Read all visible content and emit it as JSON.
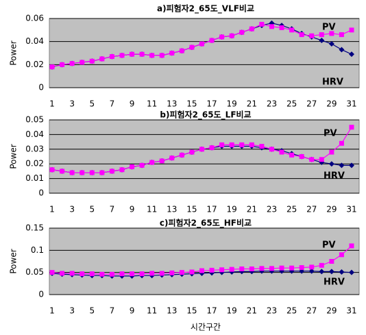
{
  "chart_data": [
    {
      "type": "line",
      "title": "a)피험자2_65도_VLF비교",
      "ylabel": "Power",
      "categories": [
        "1",
        null,
        "3",
        null,
        "5",
        null,
        "7",
        null,
        "9",
        null,
        "11",
        null,
        "13",
        null,
        "15",
        null,
        "17",
        null,
        "19",
        null,
        "21",
        null,
        "23",
        null,
        "25",
        null,
        "27",
        null,
        "29",
        null,
        "31"
      ],
      "ylim": [
        0,
        0.06
      ],
      "yticks": [
        0,
        0.02,
        0.04,
        0.06
      ],
      "grid": true,
      "background": "#c0c0c0",
      "series": [
        {
          "name": "PV",
          "color": "#ff00ff",
          "marker": "square",
          "values": [
            0.018,
            0.02,
            0.021,
            0.022,
            0.023,
            0.025,
            0.027,
            0.028,
            0.029,
            0.029,
            0.028,
            0.028,
            0.03,
            0.032,
            0.035,
            0.038,
            0.041,
            0.044,
            0.045,
            0.048,
            0.051,
            0.055,
            0.053,
            0.052,
            0.05,
            0.046,
            0.045,
            0.046,
            0.047,
            0.046,
            0.05
          ]
        },
        {
          "name": "HRV",
          "color": "#000080",
          "marker": "diamond",
          "values": [
            0.018,
            0.02,
            0.021,
            0.022,
            0.023,
            0.025,
            0.027,
            0.028,
            0.029,
            0.029,
            0.028,
            0.028,
            0.03,
            0.032,
            0.035,
            0.038,
            0.041,
            0.044,
            0.045,
            0.048,
            0.051,
            0.054,
            0.056,
            0.054,
            0.051,
            0.047,
            0.044,
            0.041,
            0.038,
            0.033,
            0.029
          ]
        }
      ]
    },
    {
      "type": "line",
      "title": "b)피험자2_65도_LF비교",
      "ylabel": "Power",
      "categories": [
        "1",
        null,
        "3",
        null,
        "5",
        null,
        "7",
        null,
        "9",
        null,
        "11",
        null,
        "13",
        null,
        "15",
        null,
        "17",
        null,
        "19",
        null,
        "21",
        null,
        "23",
        null,
        "25",
        null,
        "27",
        null,
        "29",
        null,
        "31"
      ],
      "ylim": [
        0,
        0.05
      ],
      "yticks": [
        0,
        0.01,
        0.02,
        0.03,
        0.04,
        0.05
      ],
      "grid": true,
      "background": "#c0c0c0",
      "series": [
        {
          "name": "PV",
          "color": "#ff00ff",
          "marker": "square",
          "values": [
            0.016,
            0.015,
            0.014,
            0.014,
            0.014,
            0.014,
            0.015,
            0.016,
            0.018,
            0.019,
            0.021,
            0.022,
            0.024,
            0.026,
            0.028,
            0.03,
            0.031,
            0.033,
            0.033,
            0.033,
            0.033,
            0.032,
            0.03,
            0.028,
            0.026,
            0.025,
            0.023,
            0.023,
            0.028,
            0.034,
            0.045
          ]
        },
        {
          "name": "HRV",
          "color": "#000080",
          "marker": "diamond",
          "values": [
            0.016,
            0.015,
            0.014,
            0.014,
            0.014,
            0.014,
            0.015,
            0.016,
            0.018,
            0.019,
            0.021,
            0.022,
            0.024,
            0.026,
            0.028,
            0.03,
            0.031,
            0.032,
            0.032,
            0.032,
            0.032,
            0.031,
            0.03,
            0.029,
            0.027,
            0.025,
            0.023,
            0.021,
            0.02,
            0.019,
            0.019
          ]
        }
      ]
    },
    {
      "type": "line",
      "title": "c)피험자2_65도_HF비교",
      "ylabel": "Power",
      "xlabel": "시간구간",
      "categories": [
        "1",
        null,
        "3",
        null,
        "5",
        null,
        "7",
        null,
        "9",
        null,
        "11",
        null,
        "13",
        null,
        "15",
        null,
        "17",
        null,
        "19",
        null,
        "21",
        null,
        "23",
        null,
        "25",
        null,
        "27",
        null,
        "29",
        null,
        "31"
      ],
      "ylim": [
        0,
        0.15
      ],
      "yticks": [
        0,
        0.05,
        0.1,
        0.15
      ],
      "grid": true,
      "background": "#c0c0c0",
      "series": [
        {
          "name": "PV",
          "color": "#ff00ff",
          "marker": "square",
          "values": [
            0.05,
            0.048,
            0.048,
            0.047,
            0.047,
            0.046,
            0.046,
            0.047,
            0.047,
            0.047,
            0.048,
            0.048,
            0.049,
            0.05,
            0.051,
            0.054,
            0.055,
            0.056,
            0.057,
            0.058,
            0.058,
            0.059,
            0.059,
            0.06,
            0.06,
            0.061,
            0.062,
            0.066,
            0.075,
            0.09,
            0.11
          ]
        },
        {
          "name": "HRV",
          "color": "#000080",
          "marker": "diamond",
          "values": [
            0.048,
            0.046,
            0.045,
            0.044,
            0.043,
            0.043,
            0.042,
            0.042,
            0.042,
            0.043,
            0.043,
            0.044,
            0.045,
            0.046,
            0.047,
            0.048,
            0.049,
            0.05,
            0.051,
            0.052,
            0.052,
            0.053,
            0.053,
            0.053,
            0.053,
            0.053,
            0.053,
            0.052,
            0.052,
            0.051,
            0.05
          ]
        }
      ]
    }
  ]
}
